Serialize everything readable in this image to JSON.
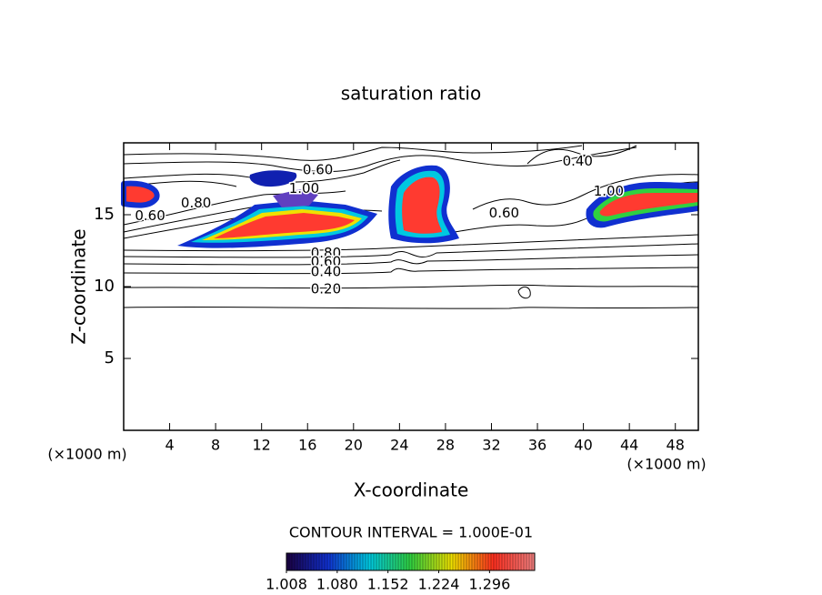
{
  "chart_data": {
    "type": "contour",
    "title": "saturation ratio",
    "xlabel": "X-coordinate",
    "ylabel": "Z-coordinate",
    "x_unit": "(×1000 m)",
    "y_unit": "(×1000 m)",
    "xlim": [
      0,
      50
    ],
    "ylim": [
      0,
      20
    ],
    "xticks": [
      4,
      8,
      12,
      16,
      20,
      24,
      28,
      32,
      36,
      40,
      44,
      48
    ],
    "yticks": [
      5,
      10,
      15
    ],
    "contour_labels": [
      {
        "label": "0.60",
        "x": 16.9,
        "y": 18.1
      },
      {
        "label": "1.00",
        "x": 15.7,
        "y": 16.8
      },
      {
        "label": "0.80",
        "x": 6.3,
        "y": 15.8
      },
      {
        "label": "0.60",
        "x": 2.3,
        "y": 14.9
      },
      {
        "label": "0.80",
        "x": 17.6,
        "y": 12.3
      },
      {
        "label": "0.60",
        "x": 17.6,
        "y": 11.7
      },
      {
        "label": "0.40",
        "x": 17.6,
        "y": 11.0
      },
      {
        "label": "0.20",
        "x": 17.6,
        "y": 9.8
      },
      {
        "label": "0.40",
        "x": 39.5,
        "y": 18.7
      },
      {
        "label": "1.00",
        "x": 42.2,
        "y": 16.6
      },
      {
        "label": "0.60",
        "x": 33.1,
        "y": 15.1
      }
    ],
    "contour_interval_text": "CONTOUR INTERVAL = 1.000E-01",
    "colorbar": {
      "lim": [
        1.008,
        1.36
      ],
      "ticks": [
        1.008,
        {
          "value": 1.08,
          "label": "1.080"
        },
        1.152,
        1.224,
        1.296
      ],
      "colors": [
        "#1a0040",
        "#1030d0",
        "#00c8e0",
        "#30d040",
        "#f0e000",
        "#ff3020",
        "#f08080"
      ]
    }
  }
}
